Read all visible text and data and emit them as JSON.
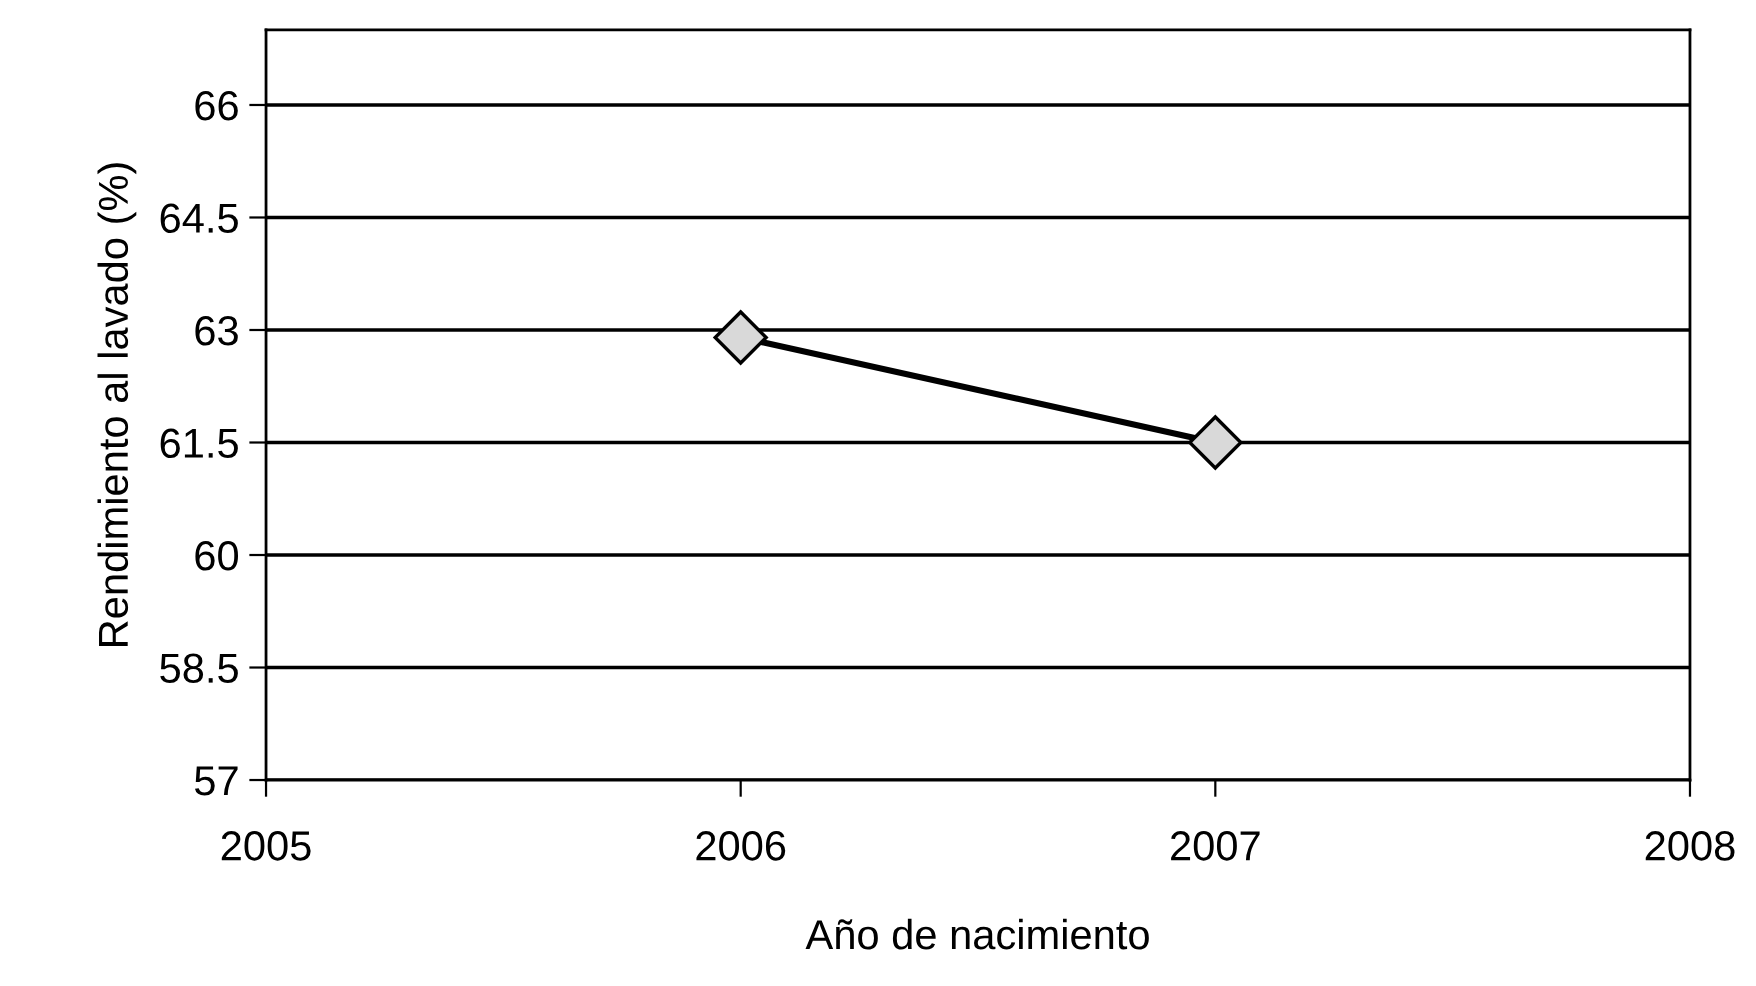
{
  "chart_data": {
    "type": "line",
    "xlabel": "Año de nacimiento",
    "ylabel": "Rendimiento al lavado (%)",
    "x": [
      2006,
      2007
    ],
    "series": [
      {
        "color": "#000000",
        "values": [
          62.9,
          61.5
        ]
      }
    ],
    "marker": "diamond",
    "line_style": "solid",
    "xlim": [
      2005,
      2008
    ],
    "xticks": [
      2005,
      2006,
      2007,
      2008
    ],
    "ylim": [
      57,
      67
    ],
    "yticks": [
      57,
      58.5,
      60,
      61.5,
      63,
      64.5,
      66
    ],
    "grid": "y",
    "legend": false
  }
}
